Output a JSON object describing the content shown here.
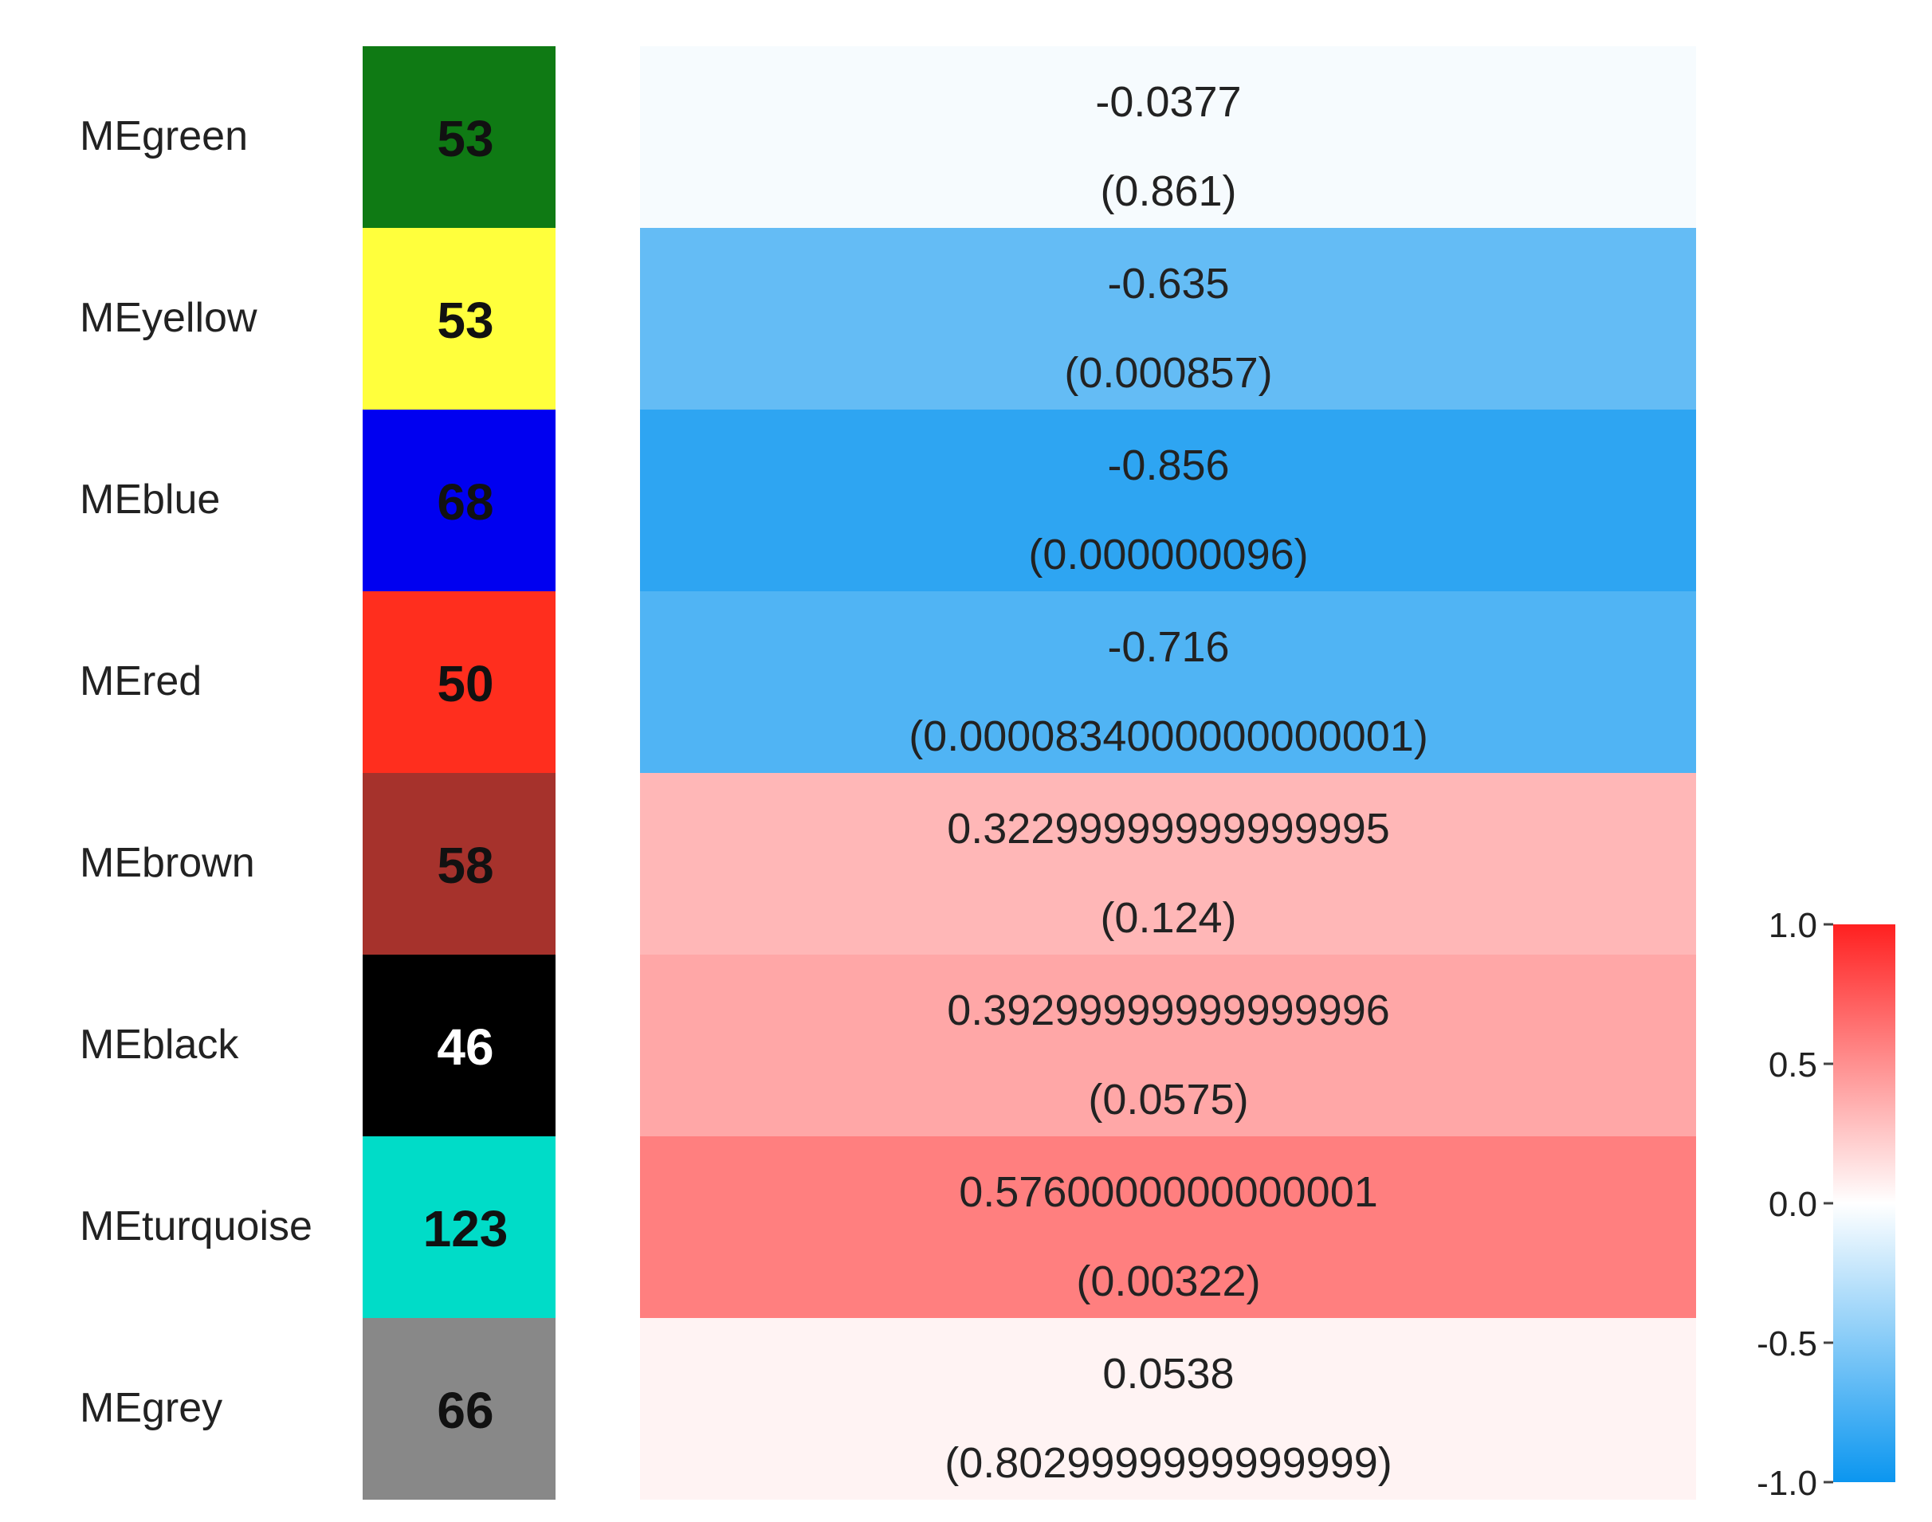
{
  "chart_data": {
    "type": "heatmap",
    "title": "",
    "xlabel": "",
    "ylabel": "",
    "rows": [
      {
        "module": "MEgreen",
        "color": "#0f7a14",
        "count": 53,
        "count_color": "#111111",
        "correlation": -0.0377,
        "corr_label": "-0.0377",
        "pvalue_label": "(0.861)"
      },
      {
        "module": "MEyellow",
        "color": "#ffff3c",
        "count": 53,
        "count_color": "#111111",
        "correlation": -0.635,
        "corr_label": "-0.635",
        "pvalue_label": "(0.000857)"
      },
      {
        "module": "MEblue",
        "color": "#0000f0",
        "count": 68,
        "count_color": "#111111",
        "correlation": -0.856,
        "corr_label": "-0.856",
        "pvalue_label": "(0.000000096)"
      },
      {
        "module": "MEred",
        "color": "#ff2e1e",
        "count": 50,
        "count_color": "#111111",
        "correlation": -0.716,
        "corr_label": "-0.716",
        "pvalue_label": "(0.0000834000000000001)"
      },
      {
        "module": "MEbrown",
        "color": "#a6322c",
        "count": 58,
        "count_color": "#111111",
        "correlation": 0.323,
        "corr_label": "0.32299999999999995",
        "pvalue_label": "(0.124)"
      },
      {
        "module": "MEblack",
        "color": "#000000",
        "count": 46,
        "count_color": "#ffffff",
        "correlation": 0.393,
        "corr_label": "0.39299999999999996",
        "pvalue_label": "(0.0575)"
      },
      {
        "module": "MEturquoise",
        "color": "#00dcc8",
        "count": 123,
        "count_color": "#111111",
        "correlation": 0.576,
        "corr_label": "0.5760000000000001",
        "pvalue_label": "(0.00322)"
      },
      {
        "module": "MEgrey",
        "color": "#888888",
        "count": 66,
        "count_color": "#111111",
        "correlation": 0.0538,
        "corr_label": "0.0538",
        "pvalue_label": "(0.8029999999999999)"
      }
    ],
    "colorbar": {
      "range": [
        -1.0,
        1.0
      ],
      "ticks": [
        "1.0",
        "0.5",
        "0.0",
        "-0.5",
        "-1.0"
      ],
      "tick_values": [
        1.0,
        0.5,
        0.0,
        -0.5,
        -1.0
      ],
      "low_color": "#0b96f0",
      "mid_color": "#ffffff",
      "high_color": "#ff2020"
    }
  }
}
